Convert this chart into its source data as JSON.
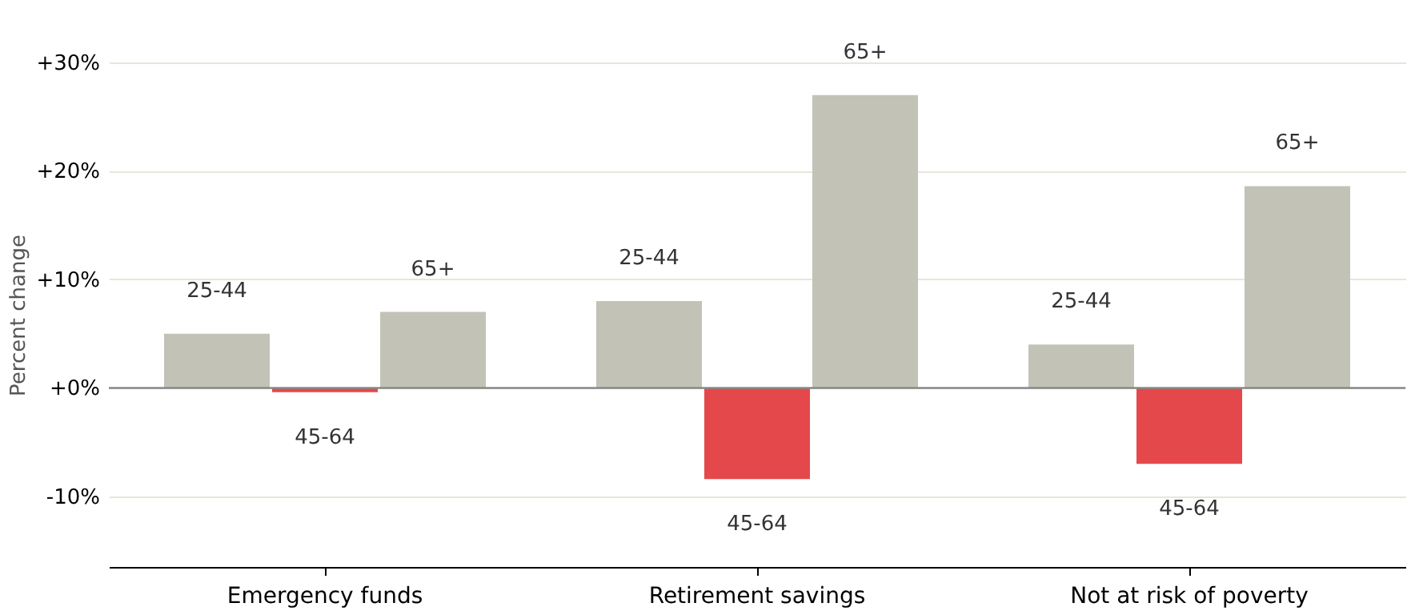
{
  "chart_data": {
    "type": "bar",
    "ylabel": "Percent change",
    "categories": [
      "Emergency funds",
      "Retirement savings",
      "Not at risk of poverty"
    ],
    "series": [
      {
        "name": "25-44",
        "color": "#c2c2b6",
        "values": [
          5.0,
          8.0,
          4.0
        ]
      },
      {
        "name": "45-64",
        "color": "#e5484a",
        "values": [
          -0.4,
          -8.4,
          -7.0
        ]
      },
      {
        "name": "65+",
        "color": "#c2c2b6",
        "values": [
          7.0,
          27.0,
          18.6
        ]
      }
    ],
    "ylim": [
      -16.5,
      30
    ],
    "yticks": [
      {
        "value": -10,
        "label": "-10%"
      },
      {
        "value": 0,
        "label": "+0%"
      },
      {
        "value": 10,
        "label": "+10%"
      },
      {
        "value": 20,
        "label": "+20%"
      },
      {
        "value": 30,
        "label": "+30%"
      }
    ],
    "grid": "y",
    "legend": false,
    "ref_lines": [
      {
        "axis": "y",
        "value": 0,
        "color": "#888888"
      }
    ]
  }
}
